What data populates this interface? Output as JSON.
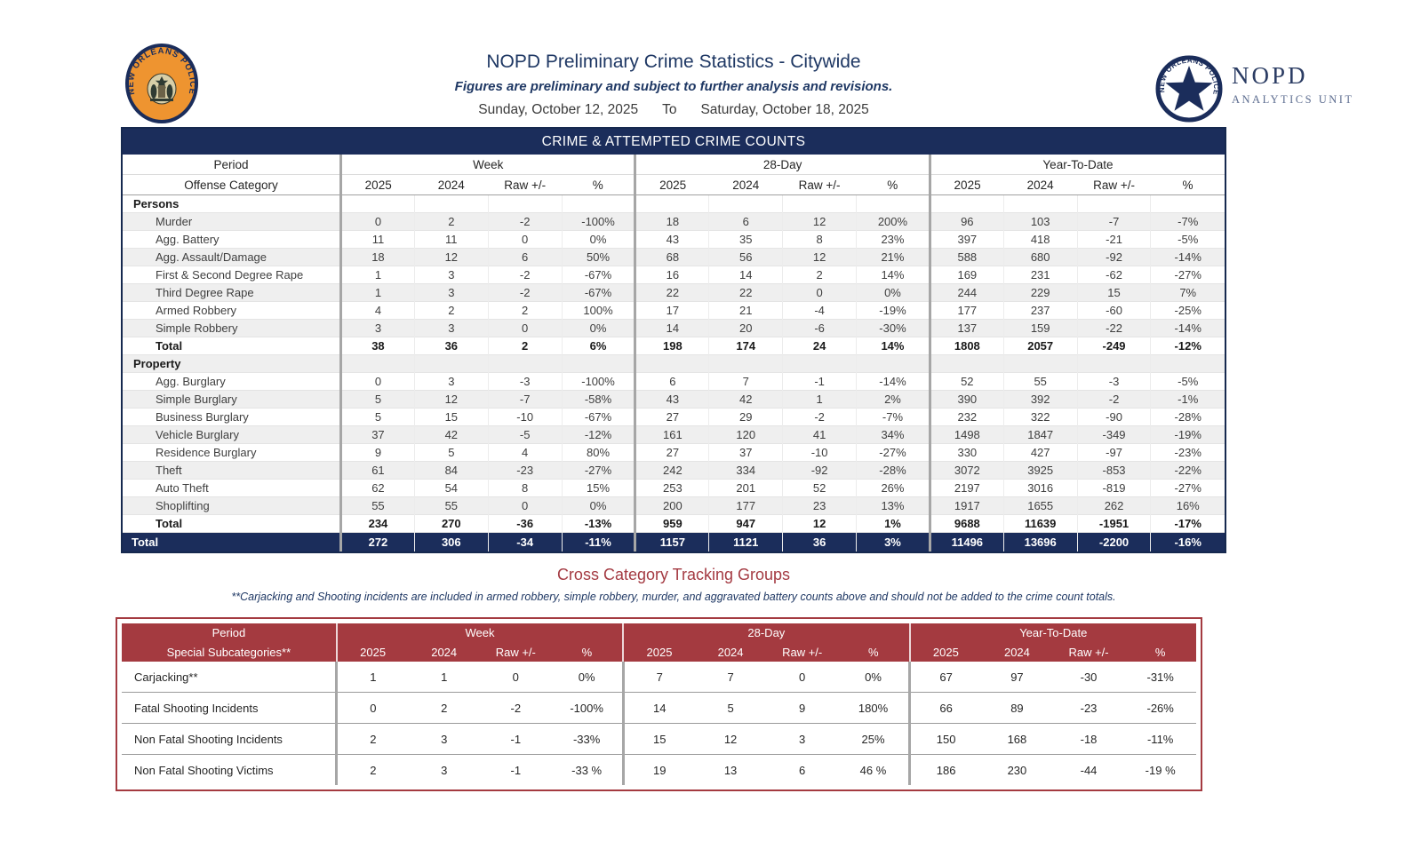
{
  "header": {
    "title": "NOPD Preliminary Crime Statistics - Citywide",
    "subtitle": "Figures are preliminary and subject to further analysis and revisions.",
    "date_from": "Sunday, October 12, 2025",
    "date_to_label": "To",
    "date_to": "Saturday, October 18, 2025",
    "left_badge_text": "NEW ORLEANS POLICE",
    "right_logo": {
      "circle_text": "NEW ORLEANS POLICE",
      "name": "NOPD",
      "unit": "ANALYTICS UNIT"
    }
  },
  "colors": {
    "navy": "#1b2d5b",
    "maroon": "#a43a40",
    "alt_row": "#efefef",
    "separator_gray": "#a6a6a6",
    "badge_orange": "#ee9430"
  },
  "main_table": {
    "banner": "CRIME & ATTEMPTED CRIME COUNTS",
    "period_label": "Period",
    "offense_label": "Offense Category",
    "groups": [
      "Week",
      "28-Day",
      "Year-To-Date"
    ],
    "sub_headers": [
      "2025",
      "2024",
      "Raw +/-",
      "%"
    ],
    "sections": [
      {
        "name": "Persons",
        "rows": [
          {
            "label": "Murder",
            "values": [
              "0",
              "2",
              "-2",
              "-100%",
              "18",
              "6",
              "12",
              "200%",
              "96",
              "103",
              "-7",
              "-7%"
            ]
          },
          {
            "label": "Agg. Battery",
            "values": [
              "11",
              "11",
              "0",
              "0%",
              "43",
              "35",
              "8",
              "23%",
              "397",
              "418",
              "-21",
              "-5%"
            ]
          },
          {
            "label": "Agg. Assault/Damage",
            "values": [
              "18",
              "12",
              "6",
              "50%",
              "68",
              "56",
              "12",
              "21%",
              "588",
              "680",
              "-92",
              "-14%"
            ]
          },
          {
            "label": "First & Second Degree Rape",
            "values": [
              "1",
              "3",
              "-2",
              "-67%",
              "16",
              "14",
              "2",
              "14%",
              "169",
              "231",
              "-62",
              "-27%"
            ]
          },
          {
            "label": "Third Degree Rape",
            "values": [
              "1",
              "3",
              "-2",
              "-67%",
              "22",
              "22",
              "0",
              "0%",
              "244",
              "229",
              "15",
              "7%"
            ]
          },
          {
            "label": "Armed Robbery",
            "values": [
              "4",
              "2",
              "2",
              "100%",
              "17",
              "21",
              "-4",
              "-19%",
              "177",
              "237",
              "-60",
              "-25%"
            ]
          },
          {
            "label": "Simple Robbery",
            "values": [
              "3",
              "3",
              "0",
              "0%",
              "14",
              "20",
              "-6",
              "-30%",
              "137",
              "159",
              "-22",
              "-14%"
            ]
          },
          {
            "label": "Total",
            "bold": true,
            "values": [
              "38",
              "36",
              "2",
              "6%",
              "198",
              "174",
              "24",
              "14%",
              "1808",
              "2057",
              "-249",
              "-12%"
            ]
          }
        ]
      },
      {
        "name": "Property",
        "rows": [
          {
            "label": "Agg. Burglary",
            "values": [
              "0",
              "3",
              "-3",
              "-100%",
              "6",
              "7",
              "-1",
              "-14%",
              "52",
              "55",
              "-3",
              "-5%"
            ]
          },
          {
            "label": "Simple Burglary",
            "values": [
              "5",
              "12",
              "-7",
              "-58%",
              "43",
              "42",
              "1",
              "2%",
              "390",
              "392",
              "-2",
              "-1%"
            ]
          },
          {
            "label": "Business Burglary",
            "values": [
              "5",
              "15",
              "-10",
              "-67%",
              "27",
              "29",
              "-2",
              "-7%",
              "232",
              "322",
              "-90",
              "-28%"
            ]
          },
          {
            "label": "Vehicle Burglary",
            "values": [
              "37",
              "42",
              "-5",
              "-12%",
              "161",
              "120",
              "41",
              "34%",
              "1498",
              "1847",
              "-349",
              "-19%"
            ]
          },
          {
            "label": "Residence Burglary",
            "values": [
              "9",
              "5",
              "4",
              "80%",
              "27",
              "37",
              "-10",
              "-27%",
              "330",
              "427",
              "-97",
              "-23%"
            ]
          },
          {
            "label": "Theft",
            "values": [
              "61",
              "84",
              "-23",
              "-27%",
              "242",
              "334",
              "-92",
              "-28%",
              "3072",
              "3925",
              "-853",
              "-22%"
            ]
          },
          {
            "label": "Auto Theft",
            "values": [
              "62",
              "54",
              "8",
              "15%",
              "253",
              "201",
              "52",
              "26%",
              "2197",
              "3016",
              "-819",
              "-27%"
            ]
          },
          {
            "label": "Shoplifting",
            "values": [
              "55",
              "55",
              "0",
              "0%",
              "200",
              "177",
              "23",
              "13%",
              "1917",
              "1655",
              "262",
              "16%"
            ]
          },
          {
            "label": "Total",
            "bold": true,
            "values": [
              "234",
              "270",
              "-36",
              "-13%",
              "959",
              "947",
              "12",
              "1%",
              "9688",
              "11639",
              "-1951",
              "-17%"
            ]
          }
        ]
      }
    ],
    "grand_total": {
      "label": "Total",
      "values": [
        "272",
        "306",
        "-34",
        "-11%",
        "1157",
        "1121",
        "36",
        "3%",
        "11496",
        "13696",
        "-2200",
        "-16%"
      ]
    }
  },
  "cross_category": {
    "heading": "Cross Category Tracking Groups",
    "note": "**Carjacking and Shooting incidents are included in armed robbery, simple robbery, murder, and aggravated battery counts above and should not be added to the crime count totals.",
    "period_label": "Period",
    "subcat_label": "Special Subcategories**",
    "groups": [
      "Week",
      "28-Day",
      "Year-To-Date"
    ],
    "sub_headers": [
      "2025",
      "2024",
      "Raw +/-",
      "%"
    ],
    "rows": [
      {
        "label": "Carjacking**",
        "values": [
          "1",
          "1",
          "0",
          "0%",
          "7",
          "7",
          "0",
          "0%",
          "67",
          "97",
          "-30",
          "-31%"
        ]
      },
      {
        "label": "Fatal Shooting Incidents",
        "values": [
          "0",
          "2",
          "-2",
          "-100%",
          "14",
          "5",
          "9",
          "180%",
          "66",
          "89",
          "-23",
          "-26%"
        ]
      },
      {
        "label": "Non Fatal Shooting Incidents",
        "values": [
          "2",
          "3",
          "-1",
          "-33%",
          "15",
          "12",
          "3",
          "25%",
          "150",
          "168",
          "-18",
          "-11%"
        ]
      },
      {
        "label": "Non Fatal Shooting Victims",
        "values": [
          "2",
          "3",
          "-1",
          "-33 %",
          "19",
          "13",
          "6",
          "46 %",
          "186",
          "230",
          "-44",
          "-19 %"
        ]
      }
    ]
  }
}
